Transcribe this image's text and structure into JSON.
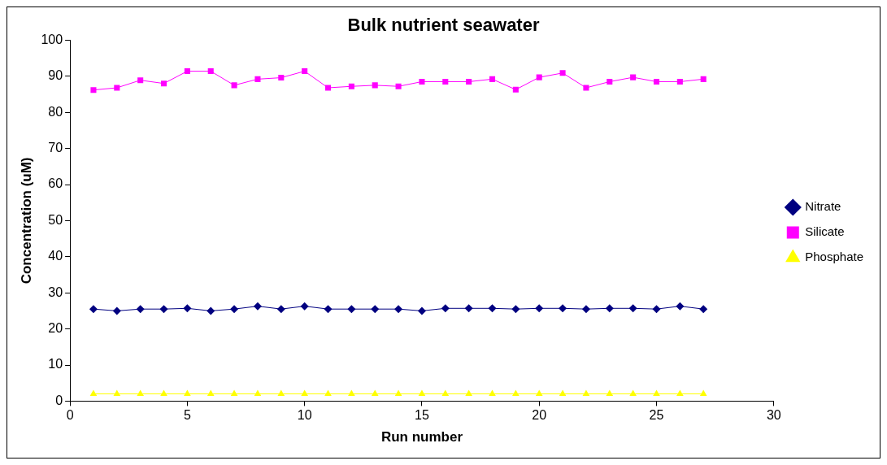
{
  "chart_data": {
    "type": "line",
    "title": "Bulk nutrient seawater",
    "xlabel": "Run number",
    "ylabel": "Concentration (uM)",
    "x": [
      1,
      2,
      3,
      4,
      5,
      6,
      7,
      8,
      9,
      10,
      11,
      12,
      13,
      14,
      15,
      16,
      17,
      18,
      19,
      20,
      21,
      22,
      23,
      24,
      25,
      26,
      27
    ],
    "series": [
      {
        "name": "Nitrate",
        "color": "#000080",
        "marker": "diamond",
        "values": [
          25.5,
          25,
          25.5,
          25.5,
          25.7,
          25,
          25.5,
          26.3,
          25.5,
          26.3,
          25.5,
          25.5,
          25.5,
          25.5,
          25,
          25.7,
          25.7,
          25.7,
          25.5,
          25.7,
          25.7,
          25.5,
          25.7,
          25.7,
          25.5,
          26.3,
          25.5
        ]
      },
      {
        "name": "Silicate",
        "color": "#ff00ff",
        "marker": "square",
        "values": [
          86.2,
          86.8,
          88.9,
          88,
          91.4,
          91.4,
          87.5,
          89.2,
          89.6,
          91.4,
          86.8,
          87.2,
          87.5,
          87.2,
          88.5,
          88.5,
          88.5,
          89.2,
          86.3,
          89.7,
          90.9,
          86.8,
          88.5,
          89.7,
          88.5,
          88.5,
          89.2
        ]
      },
      {
        "name": "Phosphate",
        "color": "#ffff00",
        "marker": "triangle",
        "values": [
          2,
          2,
          2,
          2,
          2,
          2,
          2,
          2,
          2,
          2,
          2,
          2,
          2,
          2,
          2,
          2,
          2,
          2,
          2,
          2,
          2,
          2,
          2,
          2,
          2,
          2,
          2
        ]
      }
    ],
    "xlim": [
      0,
      30
    ],
    "xticks": [
      0,
      5,
      10,
      15,
      20,
      25,
      30
    ],
    "ylim": [
      0,
      100
    ],
    "yticks": [
      0,
      10,
      20,
      30,
      40,
      50,
      60,
      70,
      80,
      90,
      100
    ],
    "grid": false,
    "legend": "right",
    "line_style": "solid"
  }
}
